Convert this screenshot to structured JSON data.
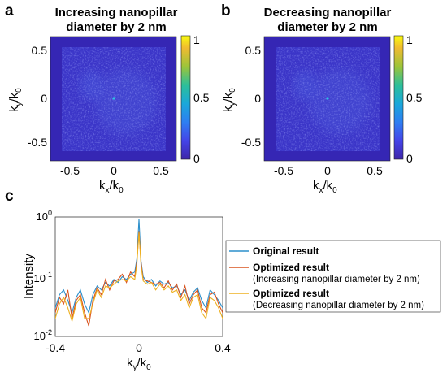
{
  "panels": {
    "a": {
      "letter": "a",
      "title_line1": "Increasing nanopillar",
      "title_line2": "diameter by 2 nm"
    },
    "b": {
      "letter": "b",
      "title_line1": "Decreasing nanopillar",
      "title_line2": "diameter by 2 nm"
    },
    "c": {
      "letter": "c"
    }
  },
  "chart_data": [
    {
      "type": "heatmap",
      "panel": "a",
      "title": "Increasing nanopillar diameter by 2 nm",
      "xlabel": "kx/k0",
      "ylabel": "ky/k0",
      "xlim": [
        -0.75,
        0.75
      ],
      "ylim": [
        -0.75,
        0.75
      ],
      "xticks": [
        "-0.5",
        "0",
        "0.5"
      ],
      "yticks": [
        "0.5",
        "0",
        "-0.5"
      ],
      "colorbar": {
        "range": [
          0,
          1
        ],
        "ticks": [
          "1",
          "0.5",
          "0"
        ],
        "colormap": "parula"
      },
      "colors": {
        "background": "#3a2fc4",
        "speckle": "#4a52e0",
        "center": "#30c0e0"
      }
    },
    {
      "type": "heatmap",
      "panel": "b",
      "title": "Decreasing nanopillar diameter by 2 nm",
      "xlabel": "kx/k0",
      "ylabel": "ky/k0",
      "xlim": [
        -0.75,
        0.75
      ],
      "ylim": [
        -0.75,
        0.75
      ],
      "xticks": [
        "-0.5",
        "0",
        "0.5"
      ],
      "yticks": [
        "0.5",
        "0",
        "-0.5"
      ],
      "colorbar": {
        "range": [
          0,
          1
        ],
        "ticks": [
          "1",
          "0.5",
          "0"
        ],
        "colormap": "parula"
      },
      "colors": {
        "background": "#3a2fc4",
        "speckle": "#4a52e0",
        "center": "#30c0e0"
      }
    },
    {
      "type": "line",
      "panel": "c",
      "xlabel": "ky/k0",
      "ylabel": "Intensity",
      "xlim": [
        -0.4,
        0.4
      ],
      "ylim": [
        0.01,
        1
      ],
      "yscale": "log",
      "xticks": [
        "-0.4",
        "0",
        "0.4"
      ],
      "yticks": [
        "10^0",
        "10^-1",
        "10^-2"
      ],
      "legend_position": "right",
      "x": [
        -0.4,
        -0.38,
        -0.36,
        -0.34,
        -0.32,
        -0.3,
        -0.28,
        -0.26,
        -0.24,
        -0.22,
        -0.2,
        -0.18,
        -0.16,
        -0.14,
        -0.12,
        -0.1,
        -0.08,
        -0.06,
        -0.04,
        -0.02,
        -0.01,
        0,
        0.01,
        0.02,
        0.04,
        0.06,
        0.08,
        0.1,
        0.12,
        0.14,
        0.16,
        0.18,
        0.2,
        0.22,
        0.24,
        0.26,
        0.28,
        0.3,
        0.32,
        0.34,
        0.36,
        0.38,
        0.4
      ],
      "series": [
        {
          "name": "Original result",
          "color": "#2b8fcb",
          "values": [
            0.03,
            0.05,
            0.06,
            0.04,
            0.025,
            0.045,
            0.06,
            0.035,
            0.025,
            0.05,
            0.07,
            0.06,
            0.08,
            0.07,
            0.09,
            0.08,
            0.1,
            0.09,
            0.11,
            0.12,
            0.2,
            0.92,
            0.18,
            0.1,
            0.08,
            0.09,
            0.07,
            0.085,
            0.075,
            0.08,
            0.065,
            0.07,
            0.05,
            0.06,
            0.04,
            0.055,
            0.065,
            0.04,
            0.03,
            0.06,
            0.05,
            0.04,
            0.03
          ]
        },
        {
          "name": "Optimized result",
          "subtitle": "(Increasing nanopillar diameter by 2 nm)",
          "color": "#d9531e",
          "values": [
            0.025,
            0.045,
            0.035,
            0.06,
            0.02,
            0.04,
            0.05,
            0.025,
            0.015,
            0.04,
            0.065,
            0.05,
            0.09,
            0.06,
            0.085,
            0.09,
            0.11,
            0.08,
            0.12,
            0.1,
            0.18,
            0.58,
            0.17,
            0.09,
            0.085,
            0.08,
            0.075,
            0.08,
            0.065,
            0.085,
            0.06,
            0.075,
            0.045,
            0.07,
            0.035,
            0.05,
            0.06,
            0.03,
            0.025,
            0.05,
            0.055,
            0.035,
            0.025
          ]
        },
        {
          "name": "Optimized result",
          "subtitle": "(Decreasing nanopillar diameter by 2 nm)",
          "color": "#edb120",
          "values": [
            0.02,
            0.035,
            0.045,
            0.03,
            0.018,
            0.035,
            0.045,
            0.02,
            0.02,
            0.035,
            0.06,
            0.045,
            0.07,
            0.065,
            0.075,
            0.085,
            0.09,
            0.085,
            0.1,
            0.09,
            0.16,
            0.55,
            0.15,
            0.085,
            0.075,
            0.08,
            0.06,
            0.075,
            0.06,
            0.07,
            0.055,
            0.06,
            0.04,
            0.05,
            0.03,
            0.045,
            0.05,
            0.025,
            0.02,
            0.045,
            0.04,
            0.03,
            0.02
          ]
        }
      ]
    }
  ]
}
